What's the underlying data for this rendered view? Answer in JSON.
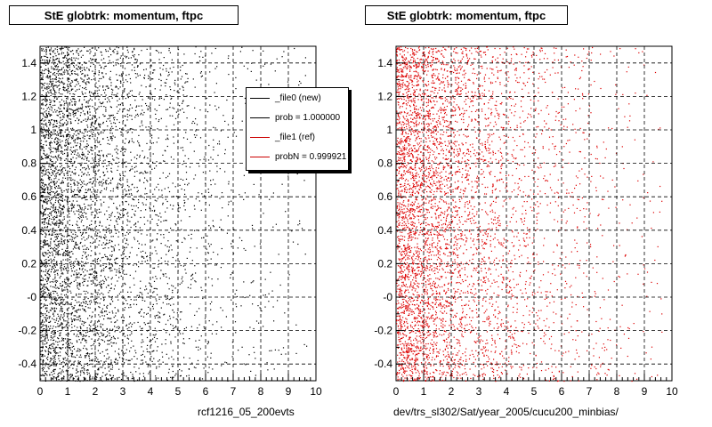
{
  "chart_data": [
    {
      "type": "scatter",
      "title": "StE globtrk: momentum, ftpc",
      "footer": "rcf1216_05_200evts",
      "marker_color": "#000000",
      "xlim": [
        0,
        10
      ],
      "ylim": [
        -0.5,
        1.5
      ],
      "x_ticks": [
        "0",
        "1",
        "2",
        "3",
        "4",
        "5",
        "6",
        "7",
        "8",
        "9",
        "10"
      ],
      "y_ticks": [
        "-0.4",
        "-0.2",
        "-0",
        "0.2",
        "0.4",
        "0.6",
        "0.8",
        "1",
        "1.2",
        "1.4"
      ],
      "grid": true,
      "legend": {
        "placement": "top-right",
        "entries": [
          {
            "label": "_file0 (new)",
            "color": "#000000"
          },
          {
            "label": "prob = 1.000000",
            "color": "#000000"
          },
          {
            "label": "_file1 (ref)",
            "color": "#cc0000"
          },
          {
            "label": "probN = 0.999921",
            "color": "#cc0000"
          }
        ]
      }
    },
    {
      "type": "scatter",
      "title": "StE globtrk: momentum, ftpc",
      "footer": "dev/trs_sl302/Sat/year_2005/cucu200_minbias/",
      "marker_color": "#dd0000",
      "xlim": [
        0,
        10
      ],
      "ylim": [
        -0.5,
        1.5
      ],
      "x_ticks": [
        "0",
        "1",
        "2",
        "3",
        "4",
        "5",
        "6",
        "7",
        "8",
        "9",
        "10"
      ],
      "y_ticks": [
        "-0.4",
        "-0.2",
        "-0",
        "0.2",
        "0.4",
        "0.6",
        "0.8",
        "1",
        "1.2",
        "1.4"
      ],
      "grid": true
    }
  ]
}
